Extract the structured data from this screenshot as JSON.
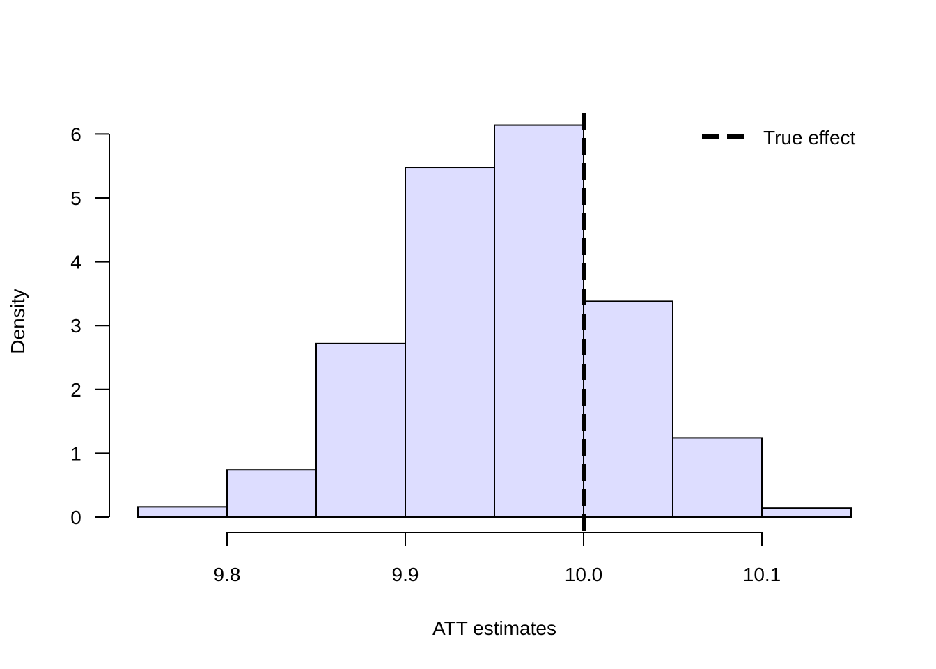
{
  "chart_data": {
    "type": "bar",
    "subtype": "histogram",
    "bins": [
      {
        "start": 9.75,
        "end": 9.8,
        "density": 0.16
      },
      {
        "start": 9.8,
        "end": 9.85,
        "density": 0.74
      },
      {
        "start": 9.85,
        "end": 9.9,
        "density": 2.72
      },
      {
        "start": 9.9,
        "end": 9.95,
        "density": 5.48
      },
      {
        "start": 9.95,
        "end": 10.0,
        "density": 6.14
      },
      {
        "start": 10.0,
        "end": 10.05,
        "density": 3.38
      },
      {
        "start": 10.05,
        "end": 10.1,
        "density": 1.24
      },
      {
        "start": 10.1,
        "end": 10.15,
        "density": 0.14
      }
    ],
    "bar_fill": "#ddddff",
    "bar_stroke": "#000000",
    "xlabel": "ATT estimates",
    "ylabel": "Density",
    "x_ticks": [
      {
        "value": 9.8,
        "label": "9.8"
      },
      {
        "value": 9.9,
        "label": "9.9"
      },
      {
        "value": 10.0,
        "label": "10.0"
      },
      {
        "value": 10.1,
        "label": "10.1"
      }
    ],
    "y_ticks": [
      {
        "value": 0,
        "label": "0"
      },
      {
        "value": 1,
        "label": "1"
      },
      {
        "value": 2,
        "label": "2"
      },
      {
        "value": 3,
        "label": "3"
      },
      {
        "value": 4,
        "label": "4"
      },
      {
        "value": 5,
        "label": "5"
      },
      {
        "value": 6,
        "label": "6"
      }
    ],
    "xlim": [
      9.75,
      10.15
    ],
    "ylim": [
      0,
      6.3
    ],
    "reference_line": {
      "x": 10.0,
      "style": "dashed",
      "color": "#000000",
      "label": "True effect"
    },
    "legend": {
      "position": "top-right",
      "entries": [
        "True effect"
      ]
    },
    "grid": false
  }
}
